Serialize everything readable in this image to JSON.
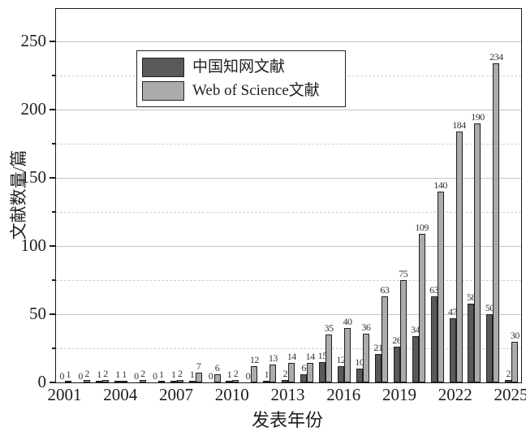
{
  "chart": {
    "ylabel": "文献数量/篇",
    "xlabel": "发表年份",
    "legend": [
      {
        "label": "中国知网文献",
        "color": "#595959"
      },
      {
        "label": "Web of Science文献",
        "color": "#ababab"
      }
    ]
  },
  "chart_data": {
    "type": "bar",
    "title": "",
    "xlabel": "发表年份",
    "ylabel": "文献数量/篇",
    "categories": [
      2001,
      2002,
      2003,
      2004,
      2005,
      2006,
      2007,
      2008,
      2009,
      2010,
      2011,
      2012,
      2013,
      2014,
      2015,
      2016,
      2017,
      2018,
      2019,
      2020,
      2021,
      2022,
      2023,
      2024,
      2025
    ],
    "series": [
      {
        "name": "中国知网文献",
        "color": "#595959",
        "values": [
          0,
          0,
          1,
          1,
          0,
          0,
          1,
          1,
          0,
          1,
          0,
          1,
          2,
          6,
          15,
          12,
          10,
          21,
          26,
          34,
          63,
          47,
          58,
          50,
          2
        ]
      },
      {
        "name": "Web of Science文献",
        "color": "#ababab",
        "values": [
          1,
          2,
          2,
          1,
          2,
          1,
          2,
          7,
          6,
          2,
          12,
          13,
          14,
          14,
          35,
          40,
          36,
          63,
          75,
          109,
          140,
          184,
          190,
          234,
          30
        ]
      }
    ],
    "yticks": [
      0,
      50,
      100,
      150,
      200,
      250
    ],
    "minor_tick_step": 25,
    "xticks": [
      2001,
      2004,
      2007,
      2010,
      2013,
      2016,
      2019,
      2022,
      2025
    ],
    "ylim": [
      0,
      273
    ],
    "grid": "major horizontal solid, minor horizontal dashed",
    "legend_position": "upper-left",
    "bar_value_labels": true
  }
}
